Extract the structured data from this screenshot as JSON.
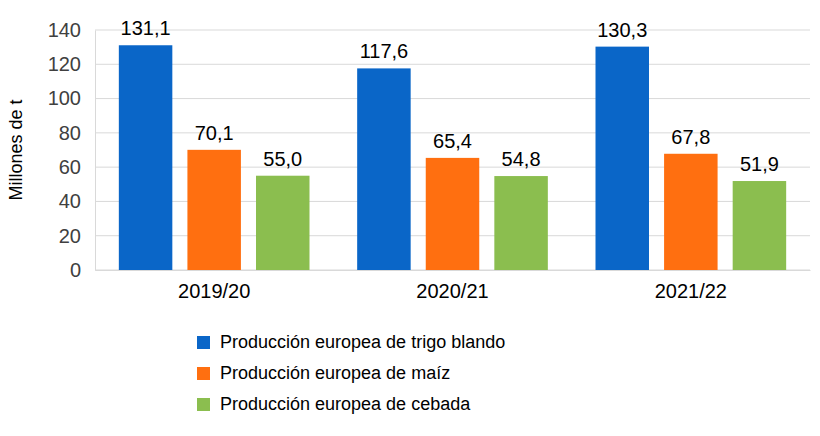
{
  "chart_data": {
    "type": "bar",
    "y_label": "Millones de t",
    "categories": [
      "2019/20",
      "2020/21",
      "2021/22"
    ],
    "series": [
      {
        "name": "Producción europea de trigo blando",
        "color": "#0A66C8",
        "values": [
          131.1,
          117.6,
          130.3
        ],
        "value_labels": [
          "131,1",
          "117,6",
          "130,3"
        ]
      },
      {
        "name": "Producción europea de maíz",
        "color": "#FF6F10",
        "values": [
          70.1,
          65.4,
          67.8
        ],
        "value_labels": [
          "70,1",
          "65,4",
          "67,8"
        ]
      },
      {
        "name": "Producción europea de cebada",
        "color": "#8BBE4F",
        "values": [
          55.0,
          54.8,
          51.9
        ],
        "value_labels": [
          "55,0",
          "54,8",
          "51,9"
        ]
      }
    ],
    "ylim": [
      0,
      140
    ],
    "yticks": [
      0,
      20,
      40,
      60,
      80,
      100,
      120,
      140
    ],
    "grid": true,
    "data_labels": true,
    "legend": "bottom"
  }
}
